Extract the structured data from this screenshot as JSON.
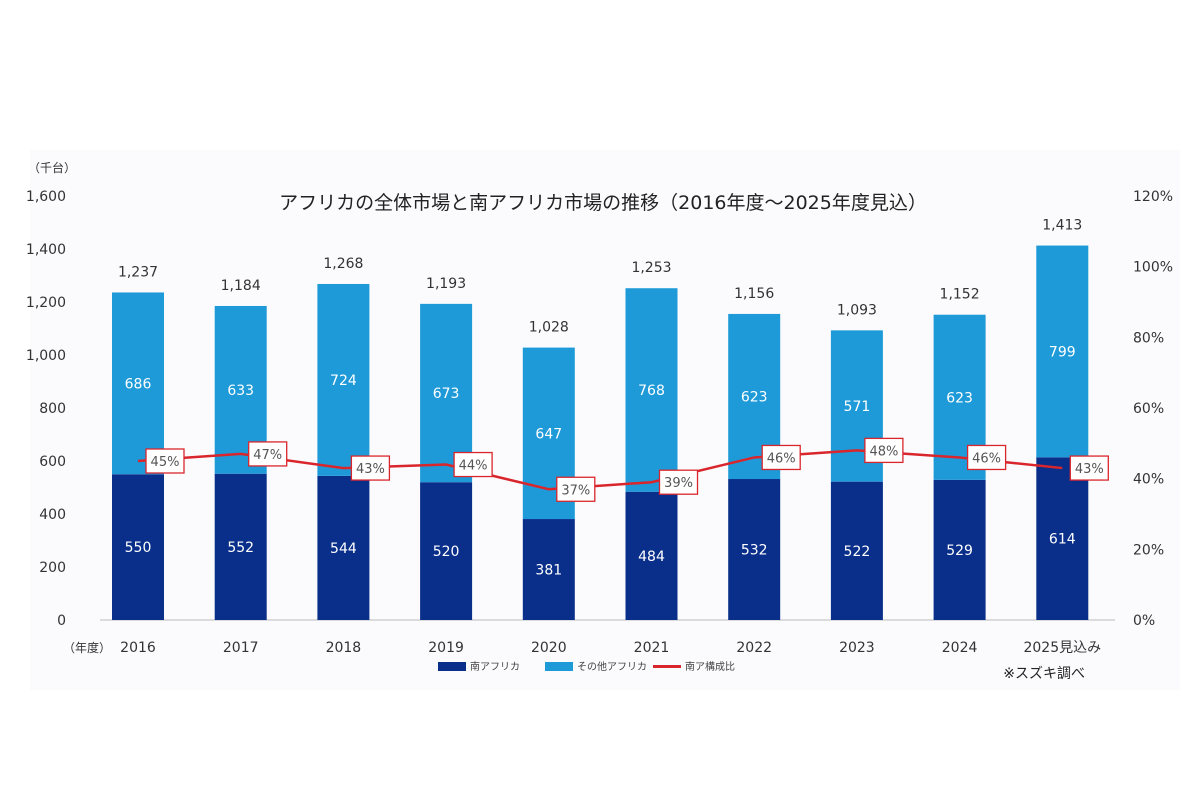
{
  "chart_data": {
    "type": "bar",
    "stacked": true,
    "title": "アフリカの全体市場と南アフリカ市場の推移（2016年度～2025年度見込）",
    "y_unit_label": "（千台）",
    "x_unit_label": "（年度）",
    "categories": [
      "2016",
      "2017",
      "2018",
      "2019",
      "2020",
      "2021",
      "2022",
      "2023",
      "2024",
      "2025見込み"
    ],
    "series": [
      {
        "name": "南アフリカ",
        "type": "bar",
        "color": "#0a2f8a",
        "values": [
          550,
          552,
          544,
          520,
          381,
          484,
          532,
          522,
          529,
          614
        ]
      },
      {
        "name": "その他アフリカ",
        "type": "bar",
        "color": "#1e9ad8",
        "values": [
          686,
          633,
          724,
          673,
          647,
          768,
          623,
          571,
          623,
          799
        ]
      },
      {
        "name": "南ア構成比",
        "type": "line",
        "axis": "right",
        "color": "#d9262c",
        "values": [
          45,
          47,
          43,
          44,
          37,
          39,
          46,
          48,
          46,
          43
        ]
      }
    ],
    "totals": [
      "1,237",
      "1,184",
      "1,268",
      "1,193",
      "1,028",
      "1,253",
      "1,156",
      "1,093",
      "1,152",
      "1,413"
    ],
    "ylim": [
      0,
      1600
    ],
    "y_ticks": [
      "0",
      "200",
      "400",
      "600",
      "800",
      "1,000",
      "1,200",
      "1,400",
      "1,600"
    ],
    "y2lim": [
      0,
      120
    ],
    "y2_ticks": [
      "0%",
      "20%",
      "40%",
      "60%",
      "80%",
      "100%",
      "120%"
    ],
    "grid": false,
    "legend_position": "bottom",
    "source_note": "※スズキ調べ"
  }
}
